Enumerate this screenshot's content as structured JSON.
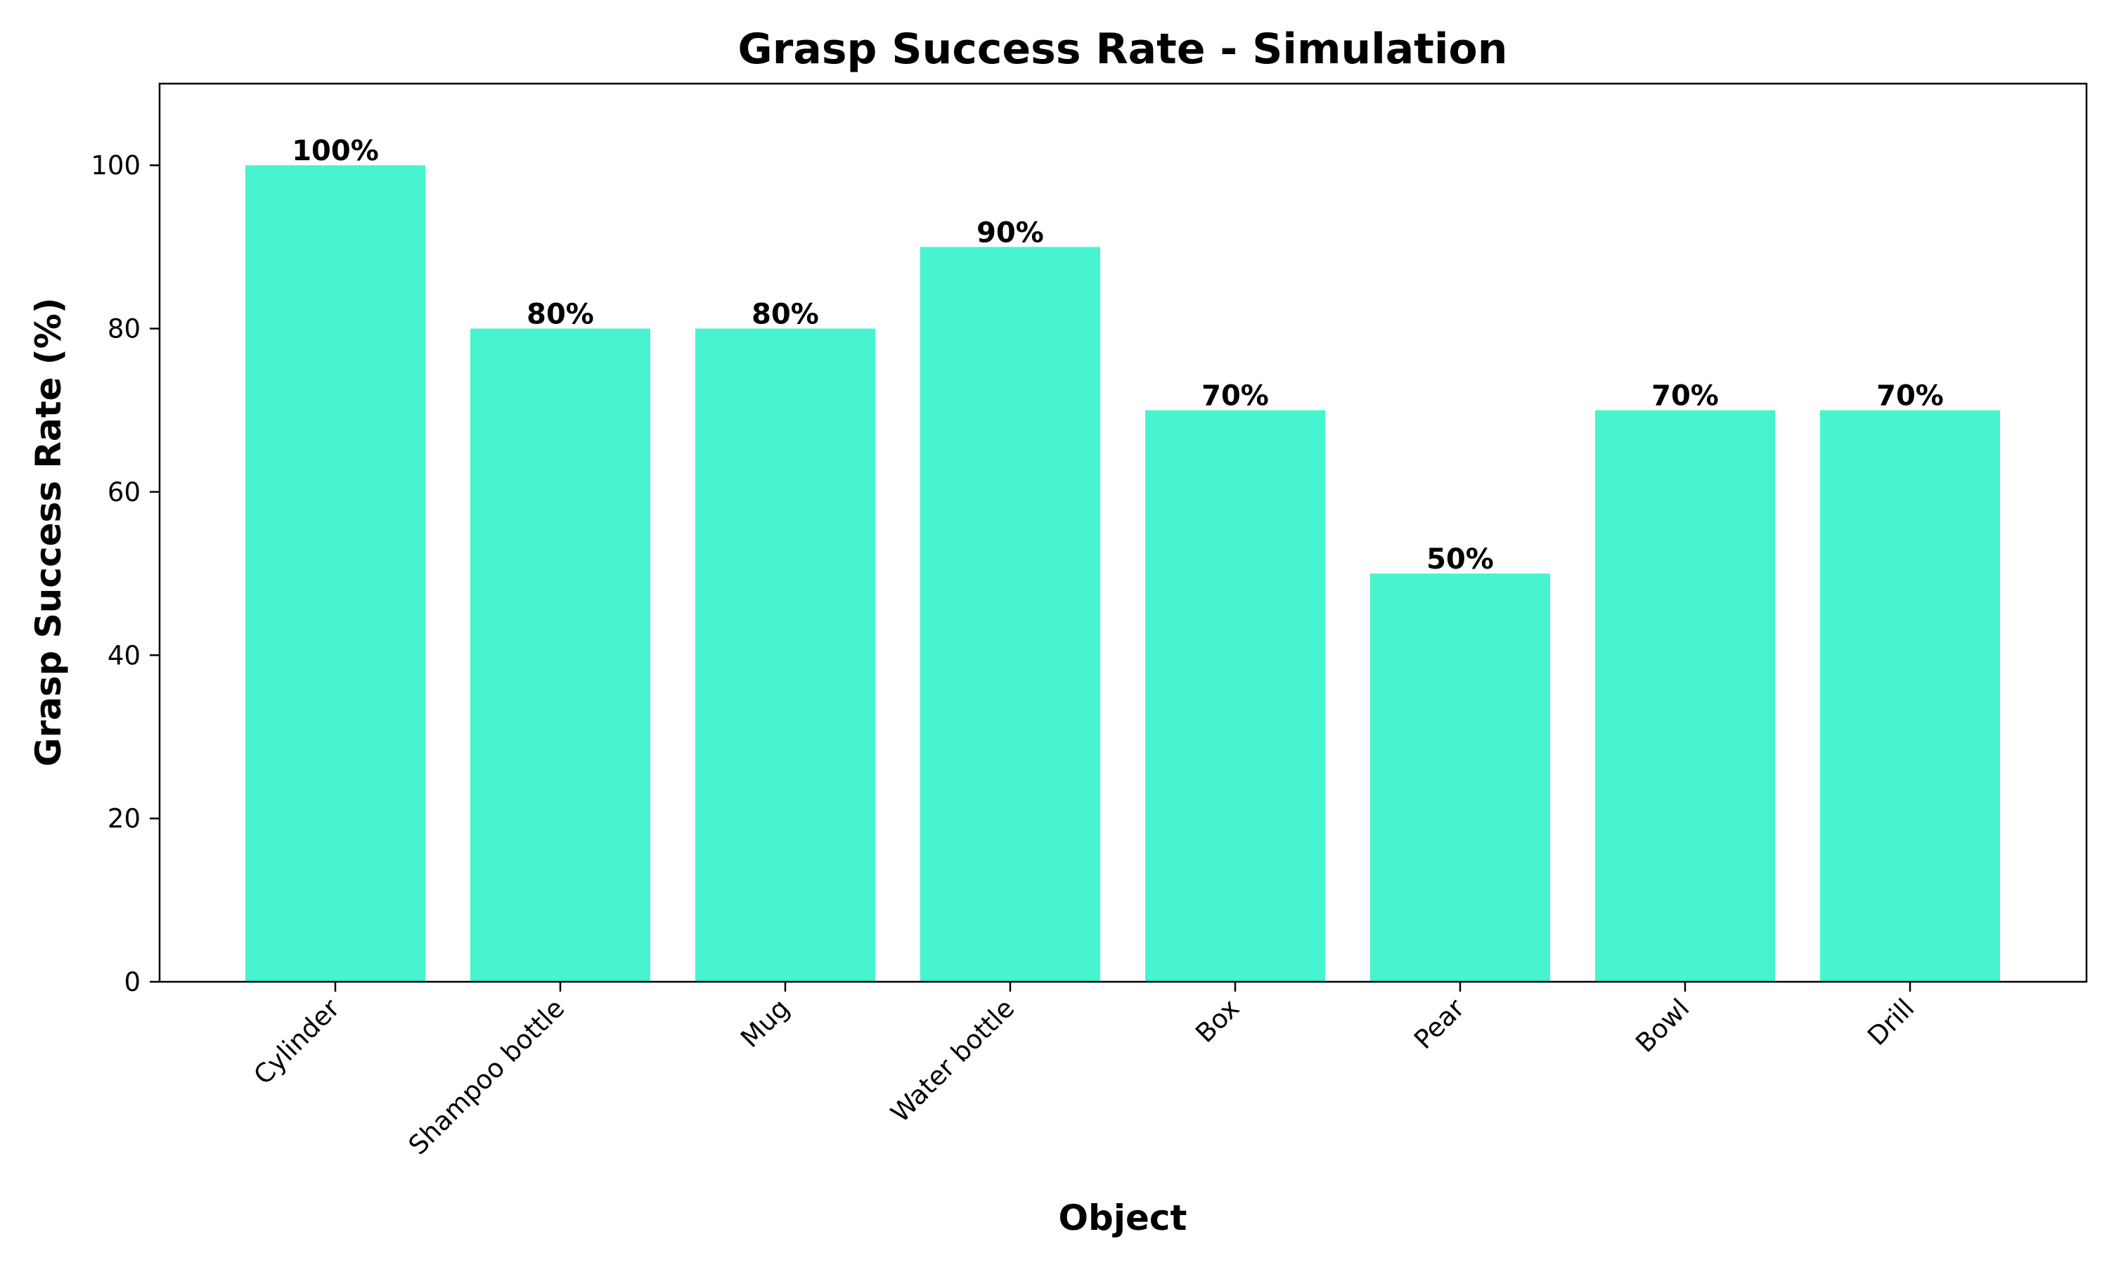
{
  "chart_data": {
    "type": "bar",
    "title": "Grasp Success Rate - Simulation",
    "xlabel": "Object",
    "ylabel": "Grasp Success Rate (%)",
    "categories": [
      "Cylinder",
      "Shampoo bottle",
      "Mug",
      "Water bottle",
      "Box",
      "Pear",
      "Bowl",
      "Drill"
    ],
    "values": [
      100,
      80,
      80,
      90,
      70,
      50,
      70,
      70
    ],
    "data_labels": [
      "100%",
      "80%",
      "80%",
      "90%",
      "70%",
      "50%",
      "70%",
      "70%"
    ],
    "ylim": [
      0,
      110
    ],
    "yticks": [
      0,
      20,
      40,
      60,
      80,
      100
    ],
    "ytick_labels": [
      "0",
      "20",
      "40",
      "60",
      "80",
      "100"
    ],
    "grid": false,
    "legend": "none",
    "bar_color": "#46F4CF",
    "axis_color": "#000000"
  }
}
